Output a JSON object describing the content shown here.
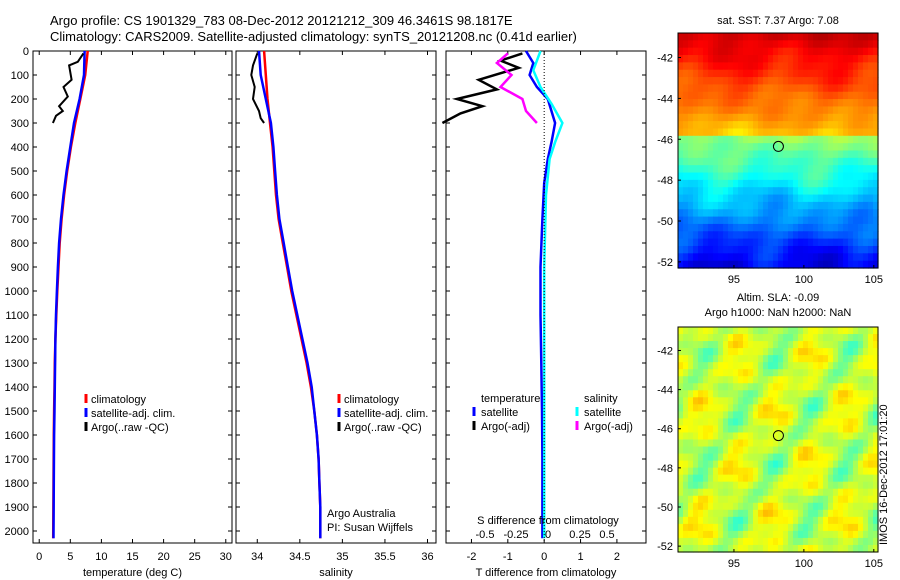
{
  "header": {
    "line1": "Argo profile: CS 1901329_783 08-Dec-2012 20121212_309 46.3461S 98.1817E",
    "line2": "Climatology: CARS2009. Satellite-adjusted climatology: synTS_20121208.nc (0.41d earlier)"
  },
  "side_label": "IMOS 16-Dec-2012 17:01:20",
  "colors": {
    "climatology": "#ff0000",
    "satellite": "#0000ff",
    "argo": "#000000",
    "satellite_s": "#00ffff",
    "argo_s": "#ff00ff"
  },
  "chart_data": [
    {
      "type": "line",
      "id": "temperature",
      "xlabel": "temperature (deg C)",
      "xlim": [
        -1,
        31
      ],
      "xticks": [
        0,
        5,
        10,
        15,
        20,
        25,
        30
      ],
      "xtick_labels": [
        "0",
        "5",
        "10",
        "15",
        "20",
        "25",
        "30"
      ],
      "ylim": [
        2050,
        0
      ],
      "yticks": [
        0,
        100,
        200,
        300,
        400,
        500,
        600,
        700,
        800,
        900,
        1000,
        1100,
        1200,
        1300,
        1400,
        1500,
        1600,
        1700,
        1800,
        1900,
        2000
      ],
      "legend": {
        "placement": "lower-center",
        "items": [
          {
            "label": "climatology",
            "color": "#ff0000"
          },
          {
            "label": "satellite-adj. clim.",
            "color": "#0000ff"
          },
          {
            "label": "Argo(..raw -QC)",
            "color": "#000000"
          }
        ]
      },
      "series": [
        {
          "name": "climatology",
          "color": "#ff0000",
          "x": [
            7.8,
            7.4,
            6.6,
            5.8,
            5.1,
            4.5,
            4.0,
            3.6,
            3.3,
            3.1,
            2.9,
            2.75,
            2.6,
            2.5,
            2.45,
            2.4,
            2.35,
            2.3,
            2.25
          ],
          "y": [
            0,
            100,
            200,
            300,
            400,
            500,
            600,
            700,
            800,
            900,
            1000,
            1100,
            1200,
            1300,
            1400,
            1500,
            1600,
            1800,
            2030
          ]
        },
        {
          "name": "satellite-adj. clim.",
          "color": "#0000ff",
          "x": [
            7.3,
            7.2,
            6.5,
            5.6,
            5.0,
            4.4,
            3.9,
            3.5,
            3.2,
            3.0,
            2.85,
            2.7,
            2.6,
            2.55,
            2.5,
            2.45,
            2.4,
            2.35,
            2.3
          ],
          "y": [
            0,
            100,
            200,
            300,
            400,
            500,
            600,
            700,
            800,
            900,
            1000,
            1100,
            1200,
            1300,
            1400,
            1500,
            1600,
            1800,
            2030
          ]
        },
        {
          "name": "Argo(..raw -QC)",
          "color": "#000000",
          "x": [
            7.1,
            6.2,
            4.8,
            5.2,
            3.9,
            4.6,
            3.2,
            3.8,
            2.7,
            2.2
          ],
          "y": [
            10,
            45,
            60,
            120,
            150,
            190,
            230,
            250,
            270,
            300
          ]
        }
      ]
    },
    {
      "type": "line",
      "id": "salinity",
      "xlabel": "salinity",
      "xlim": [
        33.75,
        36.1
      ],
      "xticks": [
        34,
        34.5,
        35,
        35.5,
        36
      ],
      "xtick_labels": [
        "34",
        "34.5",
        "35",
        "35.5",
        "36"
      ],
      "ylim": [
        2050,
        0
      ],
      "legend": {
        "placement": "lower-right",
        "items": [
          {
            "label": "climatology",
            "color": "#ff0000"
          },
          {
            "label": "satellite-adj. clim.",
            "color": "#0000ff"
          },
          {
            "label": "Argo(..raw -QC)",
            "color": "#000000"
          }
        ]
      },
      "annotations": [
        "Argo Australia",
        "PI: Susan Wijffels"
      ],
      "series": [
        {
          "name": "climatology",
          "color": "#ff0000",
          "x": [
            34.08,
            34.1,
            34.12,
            34.15,
            34.18,
            34.2,
            34.22,
            34.25,
            34.3,
            34.35,
            34.4,
            34.46,
            34.52,
            34.58,
            34.63,
            34.67,
            34.7,
            34.72,
            34.73,
            34.74,
            34.74
          ],
          "y": [
            0,
            100,
            200,
            300,
            400,
            500,
            600,
            700,
            800,
            900,
            1000,
            1100,
            1200,
            1300,
            1400,
            1500,
            1600,
            1700,
            1800,
            1900,
            2030
          ]
        },
        {
          "name": "satellite-adj. clim.",
          "color": "#0000ff",
          "x": [
            34.02,
            34.04,
            34.1,
            34.16,
            34.19,
            34.21,
            34.23,
            34.26,
            34.31,
            34.36,
            34.41,
            34.47,
            34.53,
            34.59,
            34.64,
            34.67,
            34.7,
            34.72,
            34.73,
            34.74,
            34.74
          ],
          "y": [
            0,
            100,
            200,
            300,
            400,
            500,
            600,
            700,
            800,
            900,
            1000,
            1100,
            1200,
            1300,
            1400,
            1500,
            1600,
            1700,
            1800,
            1900,
            2030
          ]
        },
        {
          "name": "Argo(..raw -QC)",
          "color": "#000000",
          "x": [
            34.0,
            33.95,
            33.93,
            33.97,
            33.95,
            34.02,
            34.04,
            34.08
          ],
          "y": [
            10,
            60,
            100,
            150,
            200,
            250,
            280,
            300
          ]
        }
      ]
    },
    {
      "type": "line",
      "id": "difference",
      "xlabel": "T difference from climatology",
      "xlim": [
        -2.7,
        2.8
      ],
      "xticks": [
        -2,
        -1,
        0,
        1,
        2
      ],
      "xtick_labels": [
        "-2",
        "-1",
        "0",
        "1",
        "2"
      ],
      "top_xlabel": "S difference from climatology",
      "top_xticks": [
        -0.5,
        -0.25,
        0,
        0.25,
        0.5
      ],
      "top_xtick_labels": [
        "-0.5",
        "-0.25",
        "0",
        "0.25",
        "0.5"
      ],
      "ylim": [
        2050,
        0
      ],
      "legend": {
        "placement": "lower-center",
        "temperature_title": "temperature",
        "salinity_title": "salinity",
        "items": [
          {
            "label": "satellite",
            "color": "#0000ff"
          },
          {
            "label": "Argo(-adj)",
            "color": "#000000"
          },
          {
            "label": "satellite",
            "color": "#00ffff"
          },
          {
            "label": "Argo(-adj)",
            "color": "#ff00ff"
          }
        ]
      },
      "series": [
        {
          "name": "temperature satellite",
          "color": "#0000ff",
          "x": [
            -0.5,
            -0.3,
            -0.4,
            -0.2,
            0.1,
            0.3,
            0.2,
            0.1,
            0.0,
            -0.05,
            -0.1,
            -0.1,
            -0.08,
            -0.06,
            -0.05,
            -0.05,
            -0.05
          ],
          "y": [
            0,
            50,
            100,
            150,
            200,
            300,
            380,
            450,
            550,
            700,
            900,
            1100,
            1300,
            1500,
            1700,
            1900,
            2030
          ]
        },
        {
          "name": "temperature Argo(-adj)",
          "color": "#000000",
          "x": [
            -0.6,
            -1.2,
            -0.7,
            -1.8,
            -1.3,
            -2.4,
            -1.7,
            -2.3,
            -2.8
          ],
          "y": [
            10,
            40,
            70,
            120,
            160,
            200,
            230,
            260,
            300
          ]
        },
        {
          "name": "salinity satellite",
          "color": "#00ffff",
          "x": [
            -0.1,
            -0.3,
            -0.1,
            0.2,
            0.5,
            0.3,
            0.15,
            0.05,
            0.0,
            0.0,
            0.0
          ],
          "y": [
            0,
            80,
            150,
            220,
            300,
            380,
            450,
            600,
            900,
            1500,
            2030
          ]
        },
        {
          "name": "salinity Argo(-adj)",
          "color": "#ff00ff",
          "x": [
            -1.0,
            -1.3,
            -0.9,
            -1.2,
            -0.6,
            -0.5,
            -0.2
          ],
          "y": [
            10,
            50,
            100,
            150,
            200,
            250,
            300
          ]
        }
      ]
    },
    {
      "type": "heatmap",
      "id": "sst-map",
      "title": "sat. SST: 7.37 Argo: 7.08",
      "xlim": [
        91,
        105.3
      ],
      "ylim": [
        -52.3,
        -40.8
      ],
      "xticks": [
        95,
        100,
        105
      ],
      "xtick_labels": [
        "95",
        "100",
        "105"
      ],
      "yticks": [
        -42,
        -44,
        -46,
        -48,
        -50,
        -52
      ],
      "ytick_labels": [
        "-42",
        "-44",
        "-46",
        "-48",
        "-50",
        "-52"
      ],
      "marker": {
        "lon": 98.18,
        "lat": -46.35
      }
    },
    {
      "type": "heatmap",
      "id": "sla-map",
      "title": "Altim. SLA: -0.09",
      "subtitle": "Argo h1000: NaN h2000: NaN",
      "xlim": [
        91,
        105.3
      ],
      "ylim": [
        -52.3,
        -40.8
      ],
      "xticks": [
        95,
        100,
        105
      ],
      "xtick_labels": [
        "95",
        "100",
        "105"
      ],
      "yticks": [
        -42,
        -44,
        -46,
        -48,
        -50,
        -52
      ],
      "ytick_labels": [
        "-42",
        "-44",
        "-46",
        "-48",
        "-50",
        "-52"
      ],
      "marker": {
        "lon": 98.18,
        "lat": -46.35
      }
    }
  ]
}
